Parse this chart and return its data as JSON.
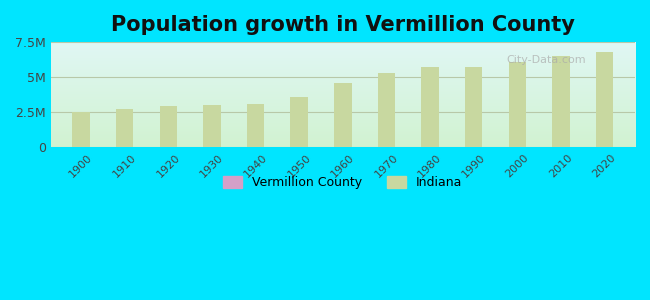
{
  "title": "Population growth in Vermillion County",
  "years": [
    1900,
    1910,
    1920,
    1930,
    1940,
    1950,
    1960,
    1970,
    1980,
    1990,
    2000,
    2010,
    2020
  ],
  "indiana_values": [
    2500000,
    2700000,
    2930000,
    3000000,
    3100000,
    3600000,
    4600000,
    5300000,
    5700000,
    5700000,
    6100000,
    6500000,
    6800000
  ],
  "vermillion_values": [
    0,
    0,
    18000,
    17000,
    17000,
    0,
    0,
    0,
    0,
    0,
    0,
    0,
    0
  ],
  "ylim": [
    0,
    7500000
  ],
  "yticks": [
    0,
    2500000,
    5000000,
    7500000
  ],
  "ytick_labels": [
    "0",
    "2.5M",
    "5M",
    "7.5M"
  ],
  "bar_color_indiana": "#c8d8a0",
  "bar_color_vermillion": "#d4a0c8",
  "background_outer": "#00e5ff",
  "background_chart_top": "#e0f5f5",
  "background_chart_bottom": "#c8f5d0",
  "grid_color": "#b8c8a8",
  "title_fontsize": 15,
  "watermark": "City-Data.com",
  "legend_vermillion": "Vermillion County",
  "legend_indiana": "Indiana"
}
